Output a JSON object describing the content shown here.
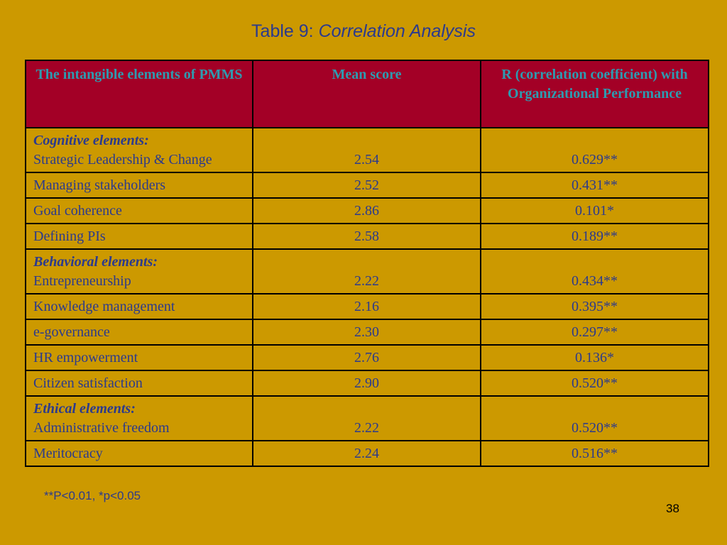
{
  "title": {
    "prefix": "Table 9:",
    "rest": "Correlation Analysis"
  },
  "table": {
    "headers": [
      "The intangible elements of PMMS",
      "Mean score",
      "R (correlation coefficient) with Organizational Performance"
    ],
    "rows": [
      {
        "group": "Cognitive elements:",
        "element": "Strategic Leadership & Change",
        "mean": "2.54",
        "r": "0.629**"
      },
      {
        "group": "",
        "element": "Managing stakeholders",
        "mean": "2.52",
        "r": "0.431**"
      },
      {
        "group": "",
        "element": "Goal coherence",
        "mean": "2.86",
        "r": "0.101*"
      },
      {
        "group": "",
        "element": "Defining PIs",
        "mean": "2.58",
        "r": "0.189**"
      },
      {
        "group": "Behavioral  elements:",
        "element": "Entrepreneurship",
        "mean": "2.22",
        "r": "0.434**"
      },
      {
        "group": "",
        "element": "Knowledge management",
        "mean": "2.16",
        "r": "0.395**"
      },
      {
        "group": "",
        "element": "e-governance",
        "mean": "2.30",
        "r": "0.297**"
      },
      {
        "group": "",
        "element": "HR empowerment",
        "mean": "2.76",
        "r": "0.136*"
      },
      {
        "group": "",
        "element": "Citizen satisfaction",
        "mean": "2.90",
        "r": "0.520**"
      },
      {
        "group": "Ethical elements:",
        "element": "Administrative freedom",
        "mean": "2.22",
        "r": "0.520**"
      },
      {
        "group": "",
        "element": "Meritocracy",
        "mean": "2.24",
        "r": "0.516**"
      }
    ]
  },
  "footnote": "**P<0.01, *p<0.05",
  "page_number": "38",
  "colors": {
    "background": "#CC9900",
    "header_fill": "#A30026",
    "header_text": "#2E9BB0",
    "body_text": "#2B3A8E"
  }
}
